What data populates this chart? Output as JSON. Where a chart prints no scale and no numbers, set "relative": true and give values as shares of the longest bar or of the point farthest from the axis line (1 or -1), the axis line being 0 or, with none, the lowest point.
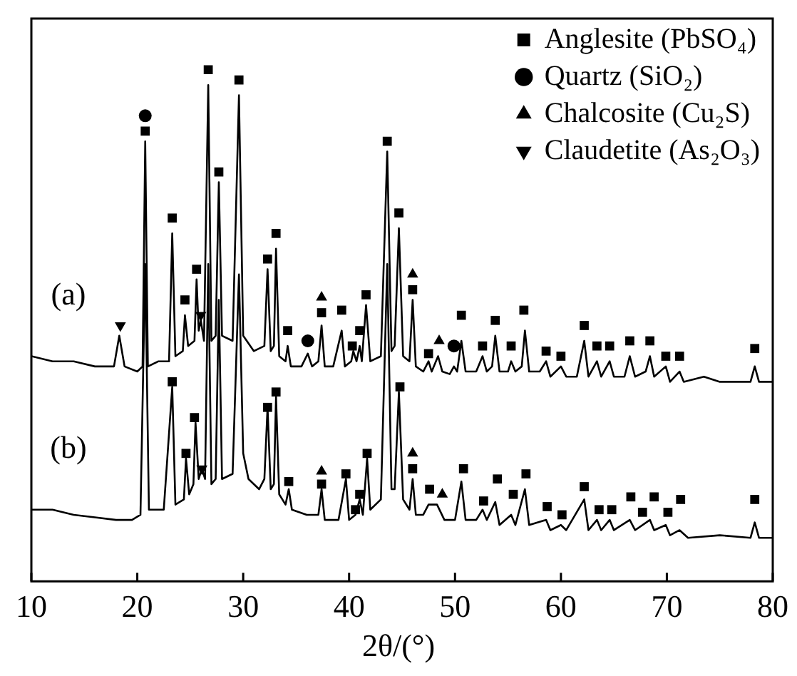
{
  "chart_data": {
    "type": "line",
    "relative": true,
    "xlabel": "2θ/(°)",
    "xlim": [
      10,
      80
    ],
    "xticks": [
      10,
      20,
      30,
      40,
      50,
      60,
      70,
      80
    ],
    "grid": false,
    "legend": "top right",
    "annotations": [
      "(a)",
      "(b)"
    ],
    "series": [
      {
        "color": "#000000",
        "x": [
          10,
          12,
          14,
          16,
          17.8,
          18.3,
          18.8,
          20.0,
          20.5,
          20.75,
          21.0,
          22.0,
          23.0,
          23.3,
          23.6,
          24.3,
          24.5,
          24.8,
          25.4,
          25.6,
          25.8,
          26.0,
          26.3,
          26.7,
          27.0,
          27.4,
          27.7,
          28.0,
          29.0,
          29.6,
          30.0,
          31.0,
          32.0,
          32.3,
          32.6,
          32.9,
          33.1,
          33.4,
          34.0,
          34.2,
          34.5,
          35.5,
          36.1,
          36.5,
          37.1,
          37.4,
          37.7,
          38.5,
          39.3,
          39.6,
          40.2,
          40.4,
          40.7,
          41.0,
          41.2,
          41.6,
          42.0,
          43.0,
          43.6,
          44.0,
          44.3,
          44.7,
          45.1,
          45.7,
          46.0,
          46.3,
          47.0,
          47.5,
          47.8,
          48.4,
          48.8,
          49.5,
          49.9,
          50.2,
          50.6,
          51.0,
          52.0,
          52.6,
          53.0,
          53.5,
          53.8,
          54.2,
          55.0,
          55.3,
          55.7,
          56.3,
          56.6,
          57.0,
          58.0,
          58.6,
          59.0,
          60.0,
          60.5,
          61.5,
          62.2,
          62.6,
          63.4,
          63.8,
          64.6,
          65.0,
          66.0,
          66.5,
          67.0,
          68.0,
          68.4,
          68.8,
          69.9,
          70.3,
          71.2,
          71.6,
          73.5,
          75.0,
          77.0,
          77.9,
          78.3,
          78.7,
          80
        ],
        "values": [
          0.44,
          0.43,
          0.43,
          0.42,
          0.42,
          0.48,
          0.42,
          0.41,
          0.42,
          0.86,
          0.42,
          0.43,
          0.43,
          0.68,
          0.44,
          0.45,
          0.52,
          0.46,
          0.47,
          0.59,
          0.49,
          0.51,
          0.47,
          0.97,
          0.47,
          0.48,
          0.78,
          0.48,
          0.47,
          0.95,
          0.48,
          0.45,
          0.46,
          0.61,
          0.45,
          0.46,
          0.65,
          0.44,
          0.43,
          0.46,
          0.42,
          0.42,
          0.445,
          0.42,
          0.43,
          0.5,
          0.42,
          0.42,
          0.49,
          0.42,
          0.43,
          0.45,
          0.43,
          0.46,
          0.43,
          0.54,
          0.43,
          0.44,
          0.84,
          0.45,
          0.46,
          0.69,
          0.44,
          0.43,
          0.55,
          0.42,
          0.41,
          0.43,
          0.41,
          0.44,
          0.41,
          0.405,
          0.42,
          0.41,
          0.47,
          0.41,
          0.41,
          0.44,
          0.41,
          0.42,
          0.48,
          0.41,
          0.41,
          0.43,
          0.41,
          0.42,
          0.49,
          0.41,
          0.41,
          0.43,
          0.4,
          0.42,
          0.4,
          0.4,
          0.47,
          0.4,
          0.43,
          0.4,
          0.43,
          0.4,
          0.4,
          0.44,
          0.4,
          0.41,
          0.44,
          0.4,
          0.42,
          0.39,
          0.41,
          0.39,
          0.4,
          0.39,
          0.39,
          0.39,
          0.42,
          0.39,
          0.39
        ]
      },
      {
        "color": "#000000",
        "x": [
          10,
          12,
          14,
          16,
          18,
          19.5,
          20.3,
          20.75,
          21.1,
          22.5,
          23.3,
          23.6,
          24.4,
          24.6,
          24.9,
          25.3,
          25.5,
          25.8,
          26.1,
          26.4,
          26.7,
          27.0,
          27.4,
          27.7,
          28.0,
          29.0,
          29.6,
          30.0,
          30.5,
          31.5,
          32.0,
          32.3,
          32.6,
          32.9,
          33.1,
          33.4,
          34.0,
          34.3,
          34.6,
          36.0,
          37.1,
          37.4,
          37.7,
          39.0,
          39.7,
          40.0,
          40.6,
          41.0,
          41.3,
          41.7,
          42.0,
          43.0,
          43.6,
          44.0,
          44.3,
          44.7,
          45.1,
          45.7,
          46.0,
          46.3,
          47.0,
          47.5,
          48.3,
          49.0,
          50.0,
          50.6,
          51.0,
          52.0,
          52.6,
          53.0,
          53.8,
          54.2,
          55.3,
          55.7,
          56.6,
          57.0,
          58.6,
          59.0,
          60.0,
          60.5,
          62.2,
          62.6,
          63.4,
          63.8,
          64.6,
          65.0,
          66.5,
          67.0,
          68.4,
          68.8,
          69.9,
          70.3,
          71.2,
          72,
          75,
          77.9,
          78.3,
          78.7,
          80
        ],
        "values": [
          0.14,
          0.14,
          0.13,
          0.125,
          0.12,
          0.12,
          0.13,
          0.62,
          0.14,
          0.14,
          0.38,
          0.15,
          0.16,
          0.24,
          0.17,
          0.19,
          0.31,
          0.2,
          0.22,
          0.2,
          0.62,
          0.19,
          0.2,
          0.55,
          0.2,
          0.21,
          0.6,
          0.25,
          0.2,
          0.18,
          0.2,
          0.34,
          0.18,
          0.19,
          0.36,
          0.17,
          0.15,
          0.18,
          0.14,
          0.13,
          0.13,
          0.18,
          0.12,
          0.12,
          0.2,
          0.12,
          0.13,
          0.16,
          0.13,
          0.24,
          0.14,
          0.16,
          0.62,
          0.18,
          0.18,
          0.37,
          0.16,
          0.14,
          0.2,
          0.13,
          0.13,
          0.15,
          0.15,
          0.12,
          0.12,
          0.195,
          0.12,
          0.12,
          0.14,
          0.12,
          0.155,
          0.11,
          0.13,
          0.11,
          0.18,
          0.11,
          0.12,
          0.1,
          0.11,
          0.1,
          0.16,
          0.1,
          0.12,
          0.1,
          0.12,
          0.1,
          0.12,
          0.1,
          0.12,
          0.1,
          0.11,
          0.09,
          0.1,
          0.085,
          0.09,
          0.085,
          0.115,
          0.085,
          0.085
        ]
      },
      {
        "type": "scatter",
        "name": "Anglesite (PbSO₄)",
        "color": "#000000",
        "marker": "square",
        "x": [
          20.75,
          23.3,
          24.5,
          25.6,
          26.7,
          27.7,
          29.6,
          32.3,
          33.1,
          34.2,
          37.4,
          39.3,
          40.3,
          41.0,
          41.6,
          43.6,
          44.7,
          46.0,
          47.5,
          50.6,
          52.6,
          53.8,
          55.3,
          56.5,
          58.6,
          60.0,
          62.2,
          63.4,
          64.6,
          66.5,
          68.4,
          69.9,
          71.2,
          78.3,
          23.3,
          24.6,
          25.4,
          32.3,
          33.1,
          34.3,
          37.4,
          39.7,
          40.6,
          41.0,
          41.7,
          44.8,
          46.0,
          47.6,
          50.8,
          52.7,
          54.0,
          55.5,
          56.7,
          58.7,
          60.1,
          62.2,
          63.6,
          64.8,
          66.6,
          67.7,
          68.8,
          70.1,
          71.3,
          78.3
        ],
        "values": [
          0.88,
          0.71,
          0.55,
          0.61,
          1.0,
          0.8,
          0.98,
          0.63,
          0.68,
          0.49,
          0.525,
          0.53,
          0.46,
          0.49,
          0.56,
          0.86,
          0.72,
          0.57,
          0.445,
          0.52,
          0.46,
          0.51,
          0.46,
          0.53,
          0.45,
          0.44,
          0.5,
          0.46,
          0.46,
          0.47,
          0.47,
          0.44,
          0.44,
          0.455,
          0.39,
          0.25,
          0.32,
          0.34,
          0.37,
          0.195,
          0.19,
          0.21,
          0.14,
          0.17,
          0.25,
          0.38,
          0.22,
          0.18,
          0.22,
          0.157,
          0.2,
          0.17,
          0.21,
          0.146,
          0.13,
          0.185,
          0.14,
          0.14,
          0.165,
          0.135,
          0.165,
          0.135,
          0.16,
          0.16
        ]
      },
      {
        "type": "scatter",
        "name": "Quartz (SiO₂)",
        "color": "#000000",
        "marker": "circle",
        "x": [
          20.75,
          36.1,
          49.9
        ],
        "values": [
          0.91,
          0.47,
          0.46
        ]
      },
      {
        "type": "scatter",
        "name": "Chalcosite (Cu₂S)",
        "color": "#000000",
        "marker": "triangle",
        "x": [
          37.4,
          46.0,
          48.5,
          37.4,
          46.0,
          48.8
        ],
        "values": [
          0.555,
          0.6,
          0.47,
          0.215,
          0.25,
          0.17
        ]
      },
      {
        "type": "scatter",
        "name": "Claudetite (As₂O₃)",
        "color": "#000000",
        "marker": "triangle-down",
        "x": [
          18.4,
          26.0,
          26.1
        ],
        "values": [
          0.5,
          0.52,
          0.22
        ]
      }
    ]
  }
}
